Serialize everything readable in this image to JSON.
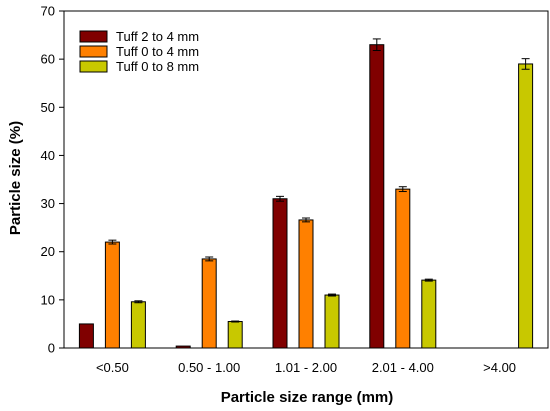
{
  "chart_data": {
    "type": "bar",
    "title": "",
    "xlabel": "Particle size range (mm)",
    "ylabel": "Particle size (%)",
    "ylim": [
      0,
      70
    ],
    "yticks": [
      0,
      10,
      20,
      30,
      40,
      50,
      60,
      70
    ],
    "categories": [
      "<0.50",
      "0.50  - 1.00",
      "1.01 - 2.00",
      "2.01 - 4.00",
      ">4.00"
    ],
    "series": [
      {
        "name": "Tuff 2 to 4 mm",
        "color": "#800000",
        "values": [
          5.0,
          0.4,
          31.0,
          63.0,
          null
        ],
        "errors": [
          0,
          0,
          0.5,
          1.2,
          null
        ]
      },
      {
        "name": "Tuff 0 to 4 mm",
        "color": "#FF8000",
        "values": [
          22.0,
          18.5,
          26.6,
          33.0,
          null
        ],
        "errors": [
          0.4,
          0.4,
          0.4,
          0.5,
          null
        ]
      },
      {
        "name": "Tuff 0 to 8 mm",
        "color": "#C8C800",
        "values": [
          9.6,
          5.5,
          11.0,
          14.1,
          59.0
        ],
        "errors": [
          0.2,
          0.1,
          0.2,
          0.2,
          1.1
        ]
      }
    ],
    "grid": false,
    "legend_position": "top-left"
  }
}
